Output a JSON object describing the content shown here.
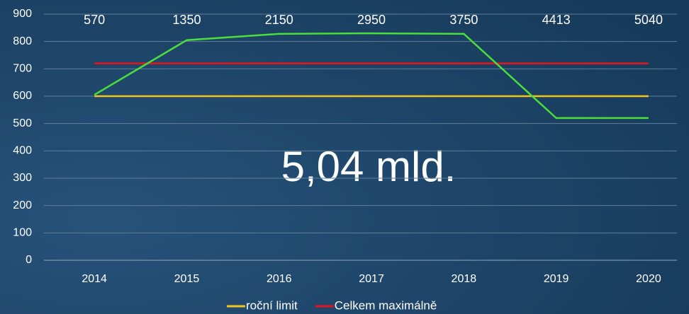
{
  "chart_data": {
    "type": "line",
    "categories": [
      "2014",
      "2015",
      "2016",
      "2017",
      "2018",
      "2019",
      "2020"
    ],
    "series": [
      {
        "name": "roční limit",
        "color": "#f2c318",
        "values": [
          600,
          600,
          600,
          600,
          600,
          600,
          600
        ]
      },
      {
        "name": "Celkem maximálně",
        "color": "#e8141c",
        "values": [
          720,
          720,
          720,
          720,
          720,
          720,
          720
        ]
      },
      {
        "color": "#4cde3a",
        "values": [
          605,
          805,
          828,
          830,
          828,
          520,
          520
        ]
      }
    ],
    "annotations": [
      570,
      1350,
      2150,
      2950,
      3750,
      4413,
      5040
    ],
    "center_text": "5,04 mld.",
    "ylim": [
      0,
      900
    ],
    "yticks": [
      0,
      100,
      200,
      300,
      400,
      500,
      600,
      700,
      800,
      900
    ],
    "grid": true,
    "legend": "bottom"
  }
}
